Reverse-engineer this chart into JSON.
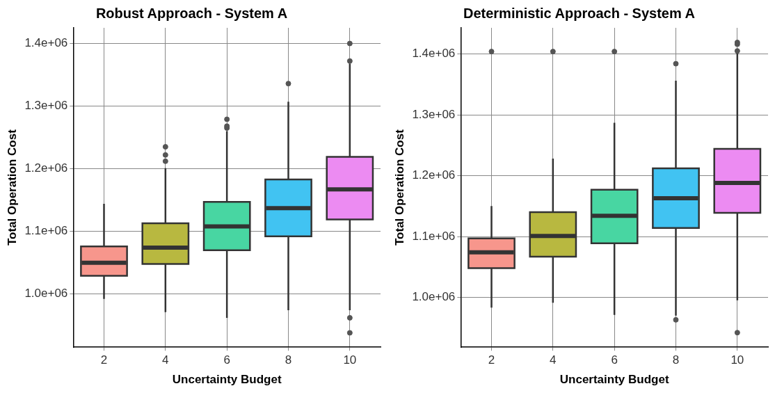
{
  "chart_data": [
    {
      "type": "box",
      "title": "Robust Approach - System A",
      "xlabel": "Uncertainty Budget",
      "ylabel": "Total Operation Cost",
      "categories": [
        "2",
        "4",
        "6",
        "8",
        "10"
      ],
      "colors": [
        "#f7968c",
        "#b8b840",
        "#48d6a2",
        "#41c3f2",
        "#ec8bf2"
      ],
      "boxes": [
        {
          "low": 992000,
          "q1": 1029000,
          "median": 1050000,
          "q3": 1076000,
          "high": 1144000
        },
        {
          "low": 971000,
          "q1": 1048000,
          "median": 1074000,
          "q3": 1113000,
          "high": 1201000,
          "outliers": [
            1212000,
            1222000,
            1235000
          ]
        },
        {
          "low": 962000,
          "q1": 1070000,
          "median": 1108000,
          "q3": 1147000,
          "high": 1260000,
          "outliers": [
            1265000,
            1268000,
            1279000
          ]
        },
        {
          "low": 974000,
          "q1": 1092000,
          "median": 1137000,
          "q3": 1183000,
          "high": 1307000,
          "outliers": [
            1336000
          ]
        },
        {
          "low": 974000,
          "q1": 1119000,
          "median": 1167000,
          "q3": 1219000,
          "high": 1368000,
          "outliers": [
            1372000,
            1400000,
            962000,
            938000
          ]
        }
      ],
      "ylim": [
        915000,
        1425000
      ],
      "yticks": [
        {
          "value": 1000000,
          "label": "1.0e+06"
        },
        {
          "value": 1100000,
          "label": "1.1e+06"
        },
        {
          "value": 1200000,
          "label": "1.2e+06"
        },
        {
          "value": 1300000,
          "label": "1.3e+06"
        },
        {
          "value": 1400000,
          "label": "1.4e+06"
        }
      ],
      "grid": true
    },
    {
      "type": "box",
      "title": "Deterministic Approach - System A",
      "xlabel": "Uncertainty Budget",
      "ylabel": "Total Operation Cost",
      "categories": [
        "2",
        "4",
        "6",
        "8",
        "10"
      ],
      "colors": [
        "#f7968c",
        "#b8b840",
        "#48d6a2",
        "#41c3f2",
        "#ec8bf2"
      ],
      "boxes": [
        {
          "low": 983000,
          "q1": 1048000,
          "median": 1074000,
          "q3": 1097000,
          "high": 1150000,
          "outliers": [
            1404000
          ]
        },
        {
          "low": 991000,
          "q1": 1067000,
          "median": 1101000,
          "q3": 1140000,
          "high": 1228000,
          "outliers": [
            1404000
          ]
        },
        {
          "low": 971000,
          "q1": 1089000,
          "median": 1134000,
          "q3": 1177000,
          "high": 1287000,
          "outliers": [
            1404000
          ]
        },
        {
          "low": 970000,
          "q1": 1114000,
          "median": 1163000,
          "q3": 1212000,
          "high": 1356000,
          "outliers": [
            1384000,
            963000
          ]
        },
        {
          "low": 995000,
          "q1": 1139000,
          "median": 1188000,
          "q3": 1244000,
          "high": 1402000,
          "outliers": [
            1405000,
            1416000,
            1419000,
            942000
          ]
        }
      ],
      "ylim": [
        918000,
        1443000
      ],
      "yticks": [
        {
          "value": 1000000,
          "label": "1.0e+06"
        },
        {
          "value": 1100000,
          "label": "1.1e+06"
        },
        {
          "value": 1200000,
          "label": "1.2e+06"
        },
        {
          "value": 1300000,
          "label": "1.3e+06"
        },
        {
          "value": 1400000,
          "label": "1.4e+06"
        }
      ],
      "grid": true
    }
  ]
}
